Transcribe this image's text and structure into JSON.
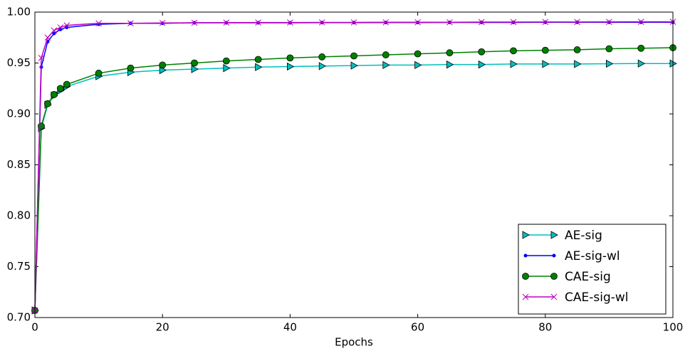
{
  "chart_data": {
    "type": "line",
    "xlabel": "Epochs",
    "x": [
      0,
      1,
      2,
      3,
      4,
      5,
      10,
      15,
      20,
      25,
      30,
      35,
      40,
      45,
      50,
      55,
      60,
      65,
      70,
      75,
      80,
      85,
      90,
      95,
      100
    ],
    "series": [
      {
        "name": "AE-sig",
        "color": "#00bfbf",
        "marker": "triangle",
        "values": [
          0.707,
          0.886,
          0.909,
          0.918,
          0.923,
          0.927,
          0.937,
          0.941,
          0.943,
          0.944,
          0.945,
          0.946,
          0.9465,
          0.947,
          0.9475,
          0.948,
          0.948,
          0.9485,
          0.9485,
          0.949,
          0.949,
          0.949,
          0.9493,
          0.9495,
          0.9495
        ]
      },
      {
        "name": "AE-sig-wl",
        "color": "#0000ff",
        "marker": "dot",
        "values": [
          0.707,
          0.946,
          0.971,
          0.979,
          0.983,
          0.985,
          0.988,
          0.989,
          0.989,
          0.9895,
          0.9895,
          0.9895,
          0.9895,
          0.9897,
          0.9897,
          0.9898,
          0.9898,
          0.9899,
          0.9899,
          0.9899,
          0.99,
          0.99,
          0.99,
          0.99,
          0.99
        ]
      },
      {
        "name": "CAE-sig",
        "color": "#008000",
        "marker": "circle",
        "values": [
          0.707,
          0.888,
          0.91,
          0.919,
          0.925,
          0.929,
          0.94,
          0.945,
          0.948,
          0.95,
          0.952,
          0.9535,
          0.955,
          0.956,
          0.957,
          0.958,
          0.959,
          0.96,
          0.961,
          0.962,
          0.9625,
          0.963,
          0.964,
          0.9645,
          0.965
        ]
      },
      {
        "name": "CAE-sig-wl",
        "color": "#bf00bf",
        "marker": "x",
        "values": [
          0.707,
          0.955,
          0.975,
          0.982,
          0.985,
          0.987,
          0.989,
          0.989,
          0.9893,
          0.9895,
          0.9897,
          0.9898,
          0.9898,
          0.9899,
          0.9899,
          0.99,
          0.99,
          0.99,
          0.9902,
          0.9902,
          0.9903,
          0.9903,
          0.9904,
          0.9905,
          0.9905
        ]
      }
    ],
    "xlim": [
      0,
      100
    ],
    "xticks": [
      0,
      20,
      40,
      60,
      80,
      100
    ],
    "ylim": [
      0.7,
      1.0
    ],
    "yticks": [
      {
        "value": 0.7,
        "label": "0.70"
      },
      0.75,
      {
        "value": 0.8,
        "label": "0.80"
      },
      0.85,
      {
        "value": 0.9,
        "label": "0.90"
      },
      0.95,
      {
        "value": 1.0,
        "label": "1.00"
      }
    ],
    "legend": "lower right",
    "grid": false
  }
}
